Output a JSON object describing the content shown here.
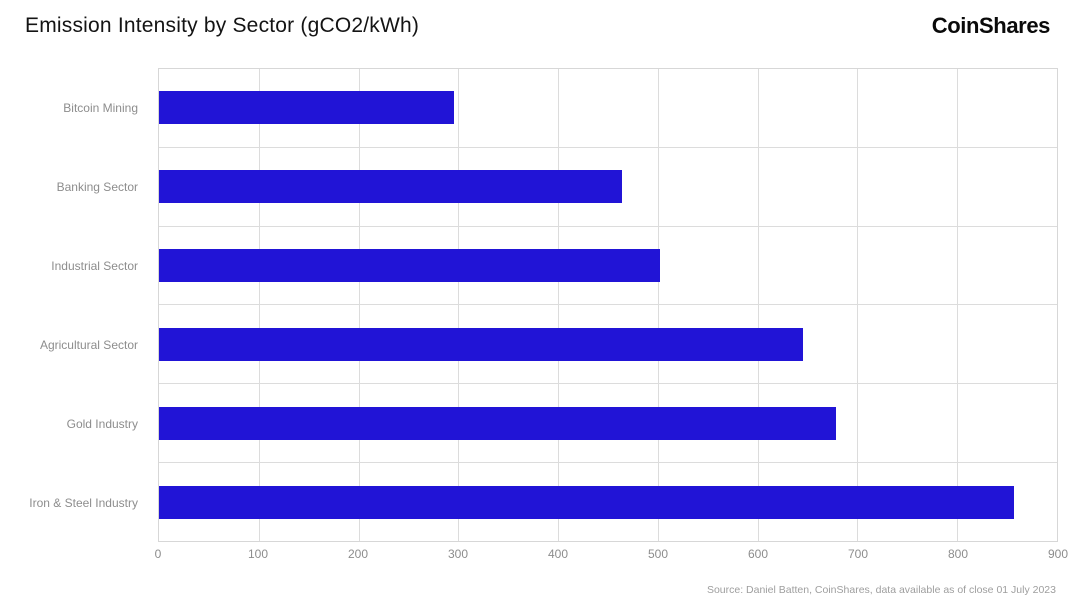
{
  "header": {
    "title": "Emission Intensity by Sector (gCO2/kWh)",
    "logo": "CoinShares"
  },
  "chart_data": {
    "type": "bar",
    "orientation": "horizontal",
    "title": "Emission Intensity by Sector (gCO2/kWh)",
    "categories": [
      "Bitcoin Mining",
      "Banking Sector",
      "Industrial Sector",
      "Agricultural Sector",
      "Gold Industry",
      "Iron & Steel Industry"
    ],
    "values": [
      296,
      464,
      502,
      645,
      679,
      857
    ],
    "xlabel": "",
    "ylabel": "",
    "xlim": [
      0,
      900
    ],
    "xticks": [
      0,
      100,
      200,
      300,
      400,
      500,
      600,
      700,
      800,
      900
    ],
    "bar_color": "#2114d6",
    "grid": true,
    "legend": "none"
  },
  "footer": {
    "source": "Source: Daniel Batten, CoinShares, data available as of close 01 July 2023"
  }
}
